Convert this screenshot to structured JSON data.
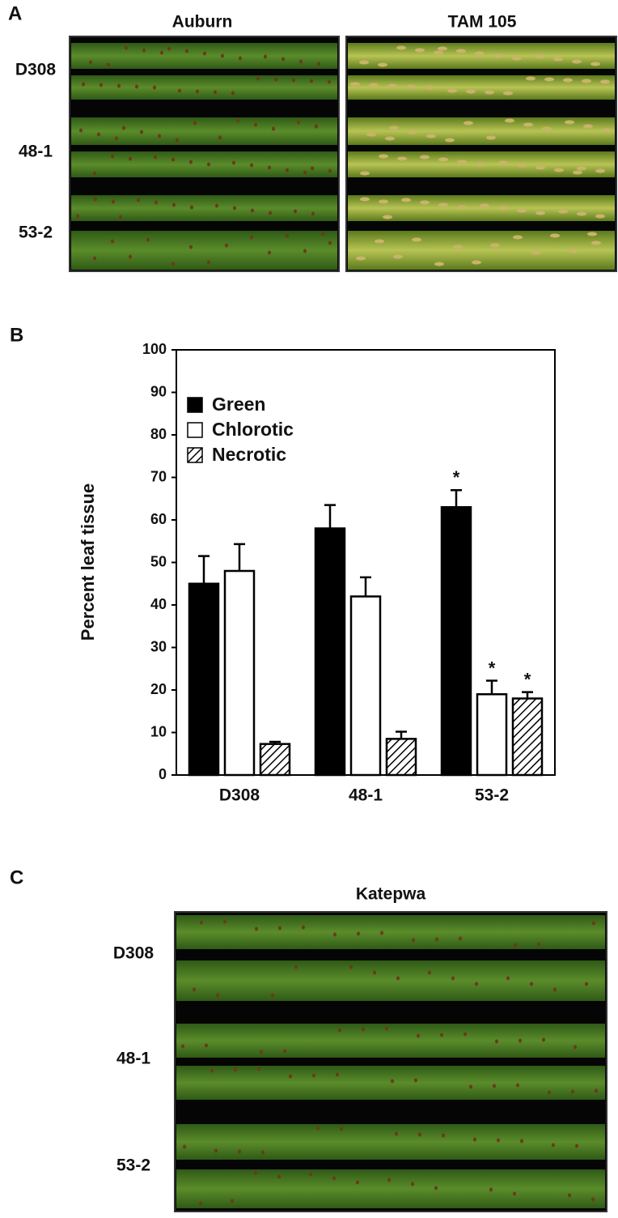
{
  "panel_a": {
    "letter": "A",
    "columns": [
      "Auburn",
      "TAM 105"
    ],
    "rows": [
      "D308",
      "48-1",
      "53-2"
    ]
  },
  "chart_data": {
    "type": "bar",
    "letter": "B",
    "ylabel": "Percent leaf tissue",
    "categories": [
      "D308",
      "48-1",
      "53-2"
    ],
    "series": [
      {
        "name": "Green",
        "color": "#000000",
        "values": [
          45,
          58,
          63
        ],
        "errors": [
          6.5,
          5.5,
          4
        ],
        "significance": [
          null,
          null,
          "*"
        ]
      },
      {
        "name": "Chlorotic",
        "color": "#ffffff",
        "values": [
          48,
          42,
          19
        ],
        "errors": [
          6.3,
          4.5,
          3.2
        ],
        "significance": [
          null,
          null,
          "*"
        ]
      },
      {
        "name": "Necrotic",
        "color": "#ffffff",
        "hatch": true,
        "values": [
          7.3,
          8.5,
          18
        ],
        "errors": [
          0.5,
          1.7,
          1.5
        ],
        "significance": [
          null,
          null,
          "*"
        ]
      }
    ],
    "ylim": [
      0,
      100
    ],
    "yticks": [
      0,
      10,
      20,
      30,
      40,
      50,
      60,
      70,
      80,
      90,
      100
    ],
    "legend": "upper-left"
  },
  "panel_c": {
    "letter": "C",
    "title": "Katepwa",
    "rows": [
      "D308",
      "48-1",
      "53-2"
    ]
  }
}
